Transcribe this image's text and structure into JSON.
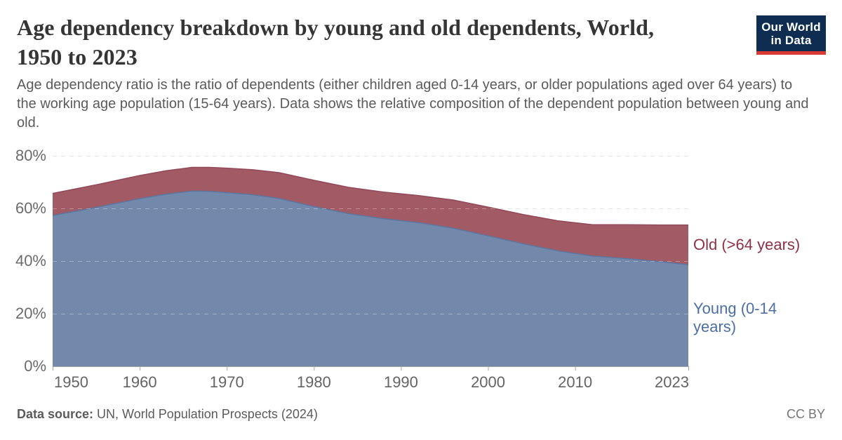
{
  "header": {
    "logo": {
      "line1": "Our World",
      "line2": "in Data"
    }
  },
  "chart_data": {
    "type": "area",
    "stacked": true,
    "title": "Age dependency breakdown by young and old dependents, World, 1950 to 2023",
    "subtitle": "Age dependency ratio is the ratio of dependents (either children aged 0-14 years, or older populations aged over 64 years) to the working age population (15-64 years). Data shows the relative composition of the dependent population between young and old.",
    "xlabel": "",
    "ylabel": "",
    "x": [
      1950,
      1955,
      1960,
      1963,
      1966,
      1968,
      1970,
      1973,
      1976,
      1980,
      1984,
      1988,
      1992,
      1996,
      2000,
      2004,
      2008,
      2012,
      2016,
      2020,
      2023
    ],
    "series": [
      {
        "name": "Young (0-14 years)",
        "values": [
          57.3,
          60.4,
          63.7,
          65.4,
          66.6,
          66.5,
          66.0,
          65.2,
          63.8,
          60.7,
          58.0,
          56.1,
          54.6,
          52.5,
          49.6,
          46.6,
          43.9,
          41.9,
          40.9,
          39.7,
          38.6
        ],
        "fill_color": "#7289ac",
        "line_color": "#5c76a0",
        "label_color": "#4c6fa5"
      },
      {
        "name": "Old (>64 years)",
        "values": [
          8.4,
          8.6,
          8.8,
          8.9,
          9.0,
          9.1,
          9.3,
          9.5,
          9.8,
          10.0,
          10.0,
          10.1,
          10.3,
          10.7,
          10.9,
          11.1,
          11.4,
          11.9,
          12.9,
          14.0,
          15.1
        ],
        "fill_color": "#a25b64",
        "line_color": "#93485a",
        "label_color": "#8e3145"
      }
    ],
    "xlim": [
      1950,
      2023
    ],
    "ylim": [
      0,
      80
    ],
    "y_ticks": [
      0,
      20,
      40,
      60,
      80
    ],
    "y_tick_suffix": "%",
    "x_ticks": [
      1950,
      1960,
      1970,
      1980,
      1990,
      2000,
      2010,
      2023
    ],
    "grid": "dashed-horizontal",
    "legend_position": "right-of-plot",
    "gridline_color": "#d8d8d8",
    "axis_color": "#a5a5a5"
  },
  "footer": {
    "label": "Data source:",
    "source": "UN, World Population Prospects (2024)",
    "license": "CC BY"
  }
}
